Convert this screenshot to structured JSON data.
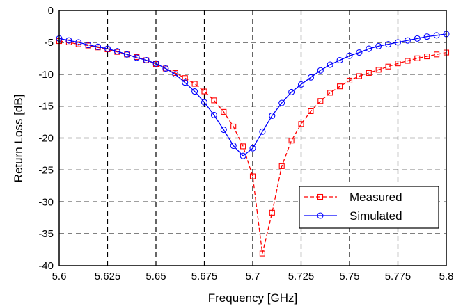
{
  "chart_data": {
    "type": "line",
    "title": "",
    "xlabel": "Frequency [GHz]",
    "ylabel": "Return Loss [dB]",
    "xlim": [
      5.6,
      5.8
    ],
    "ylim": [
      -40,
      0
    ],
    "x_ticks": [
      "5.6",
      "5.625",
      "5.65",
      "5.675",
      "5.7",
      "5.725",
      "5.75",
      "5.775",
      "5.8"
    ],
    "y_ticks": [
      "0",
      "-5",
      "-10",
      "-15",
      "-20",
      "-25",
      "-30",
      "-35",
      "-40"
    ],
    "grid": true,
    "legend_position": "bottom-right",
    "series": [
      {
        "name": "Measured",
        "color": "#ff0000",
        "marker": "square",
        "line_style": "dashed",
        "x": [
          5.6,
          5.605,
          5.61,
          5.615,
          5.62,
          5.625,
          5.63,
          5.635,
          5.64,
          5.645,
          5.65,
          5.655,
          5.66,
          5.665,
          5.67,
          5.675,
          5.68,
          5.685,
          5.69,
          5.695,
          5.7,
          5.705,
          5.71,
          5.715,
          5.72,
          5.725,
          5.73,
          5.735,
          5.74,
          5.745,
          5.75,
          5.755,
          5.76,
          5.765,
          5.77,
          5.775,
          5.78,
          5.785,
          5.79,
          5.795,
          5.8
        ],
        "y": [
          -4.8,
          -5.0,
          -5.3,
          -5.5,
          -5.8,
          -6.1,
          -6.5,
          -6.9,
          -7.3,
          -7.8,
          -8.4,
          -9.1,
          -9.8,
          -10.6,
          -11.5,
          -12.7,
          -14.1,
          -15.9,
          -18.2,
          -21.3,
          -26.0,
          -38.1,
          -31.7,
          -24.4,
          -20.4,
          -17.8,
          -15.8,
          -14.2,
          -12.9,
          -11.9,
          -11.0,
          -10.3,
          -9.8,
          -9.3,
          -8.8,
          -8.3,
          -7.9,
          -7.5,
          -7.2,
          -6.9,
          -6.6
        ]
      },
      {
        "name": "Simulated",
        "color": "#0000ff",
        "marker": "circle",
        "line_style": "solid",
        "x": [
          5.6,
          5.605,
          5.61,
          5.615,
          5.62,
          5.625,
          5.63,
          5.635,
          5.64,
          5.645,
          5.65,
          5.655,
          5.66,
          5.665,
          5.67,
          5.675,
          5.68,
          5.685,
          5.69,
          5.695,
          5.7,
          5.705,
          5.71,
          5.715,
          5.72,
          5.725,
          5.73,
          5.735,
          5.74,
          5.745,
          5.75,
          5.755,
          5.76,
          5.765,
          5.77,
          5.775,
          5.78,
          5.785,
          5.79,
          5.795,
          5.8
        ],
        "y": [
          -4.4,
          -4.7,
          -5.0,
          -5.4,
          -5.7,
          -6.0,
          -6.4,
          -6.9,
          -7.4,
          -7.8,
          -8.3,
          -9.1,
          -10.0,
          -11.3,
          -12.7,
          -14.4,
          -16.4,
          -18.7,
          -21.2,
          -22.8,
          -21.6,
          -19.0,
          -16.5,
          -14.5,
          -12.8,
          -11.6,
          -10.5,
          -9.4,
          -8.5,
          -7.8,
          -7.1,
          -6.6,
          -6.0,
          -5.6,
          -5.3,
          -5.0,
          -4.7,
          -4.4,
          -4.1,
          -3.9,
          -3.7
        ]
      }
    ]
  }
}
